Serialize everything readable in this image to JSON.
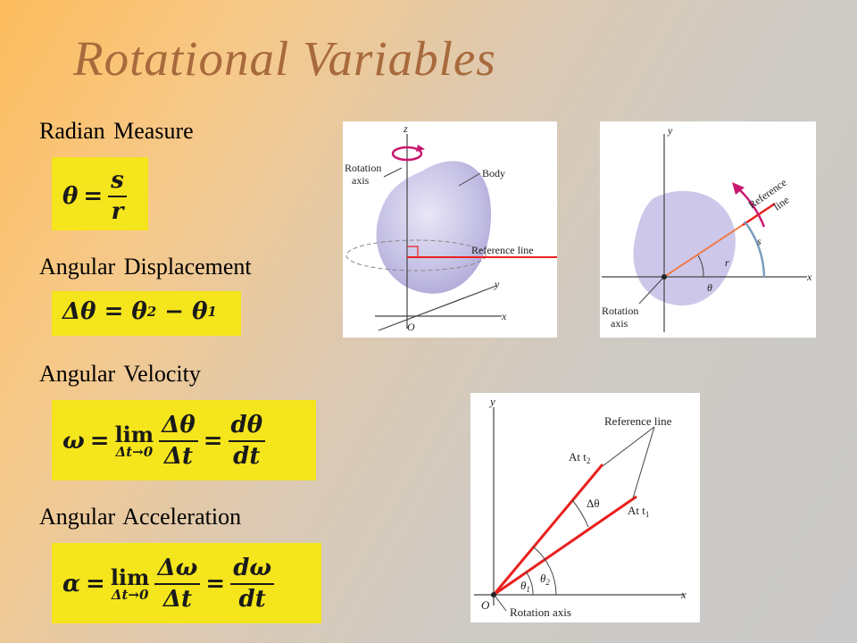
{
  "title": "Rotational Variables",
  "labels": {
    "radian": "Radian Measure",
    "displacement": "Angular Displacement",
    "velocity": "Angular Velocity",
    "acceleration": "Angular Acceleration"
  },
  "equations": {
    "radian": {
      "lhs": "θ",
      "eq": "=",
      "num": "s",
      "den": "r"
    },
    "displacement": {
      "text": "Δθ = θ",
      "sub2": "2",
      "minus": " − θ",
      "sub1": "1"
    },
    "velocity": {
      "lhs": "ω",
      "eq": "=",
      "lim": "lim",
      "limsub": "Δt→0",
      "num1": "Δθ",
      "den1": "Δt",
      "eq2": "=",
      "num2": "dθ",
      "den2": "dt"
    },
    "acceleration": {
      "lhs": "α",
      "eq": "=",
      "lim": "lim",
      "limsub": "Δt→0",
      "num1": "Δω",
      "den1": "Δt",
      "eq2": "=",
      "num2": "dω",
      "den2": "dt"
    }
  },
  "figure1": {
    "z": "z",
    "rotation1": "Rotation",
    "rotation2": "axis",
    "body": "Body",
    "ref": "Reference line",
    "y": "y",
    "x": "x",
    "o": "O"
  },
  "figure2": {
    "y": "y",
    "x": "x",
    "ref1": "Reference",
    "ref2": "line",
    "s": "s",
    "r": "r",
    "theta": "θ",
    "rot1": "Rotation",
    "rot2": "axis"
  },
  "figure3": {
    "y": "y",
    "x": "x",
    "o": "O",
    "ref": "Reference line",
    "at2": "At t",
    "at2sub": "2",
    "at1": "At t",
    "at1sub": "1",
    "dtheta": "Δθ",
    "th1": "θ",
    "th1sub": "1",
    "th2": "θ",
    "th2sub": "2",
    "rotaxis": "Rotation axis"
  },
  "colors": {
    "accent": "#a86a3c",
    "eqbg": "#f5e51c",
    "red": "#e8201e",
    "pink": "#c8196e",
    "blob": "#c9c5e8"
  }
}
